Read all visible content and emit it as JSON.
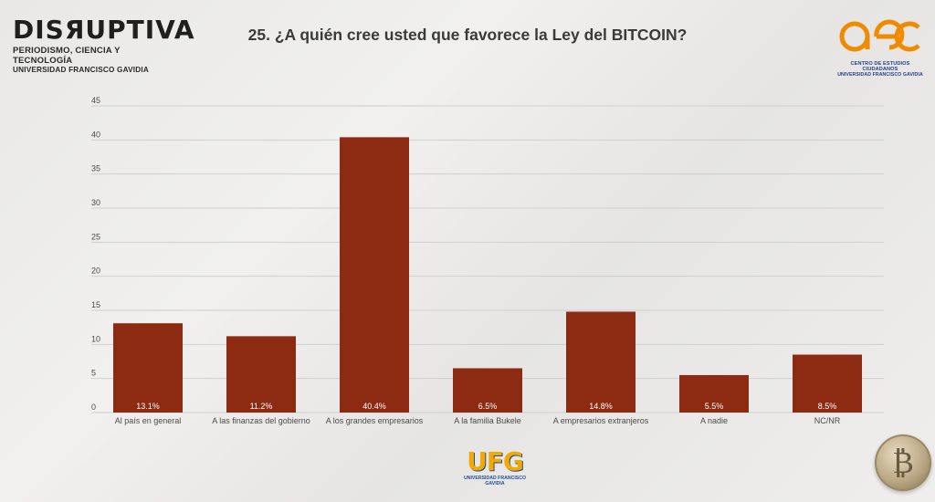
{
  "header": {
    "brand_left": "DISЯUPTIVA",
    "brand_left_sub1": "PERIODISMO, CIENCIA Y TECNOLOGÍA",
    "brand_left_sub2": "UNIVERSIDAD FRANCISCO GAVIDIA",
    "title": "25. ¿A quién cree usted que favorece la Ley del BITCOIN?",
    "brand_right_line1": "CENTRO DE ESTUDIOS CIUDADANOS",
    "brand_right_line2": "UNIVERSIDAD FRANCISCO GAVIDIA"
  },
  "footer": {
    "ufg_mark": "UFG",
    "ufg_tag": "UNIVERSIDAD FRANCISCO GAVIDIA"
  },
  "colors": {
    "bar": "#8c2a12",
    "grid": "#cfcfcf",
    "label_text": "#ffffff",
    "axis_text": "#4a4a4a",
    "aec_orange": "#f08a00",
    "aec_blue": "#24408e"
  },
  "chart_data": {
    "type": "bar",
    "title": "",
    "xlabel": "",
    "ylabel": "",
    "ylim": [
      0,
      45
    ],
    "yticks": [
      0,
      5,
      10,
      15,
      20,
      25,
      30,
      35,
      40,
      45
    ],
    "grid": true,
    "categories": [
      "Al país en general",
      "A las finanzas del gobierno",
      "A los grandes empresarios",
      "A la familia Bukele",
      "A empresarios extranjeros",
      "A nadie",
      "NC/NR"
    ],
    "values": [
      13.1,
      11.2,
      40.4,
      6.5,
      14.8,
      5.5,
      8.5
    ],
    "data_labels": [
      "13.1%",
      "11.2%",
      "40.4%",
      "6.5%",
      "14.8%",
      "5.5%",
      "8.5%"
    ]
  }
}
